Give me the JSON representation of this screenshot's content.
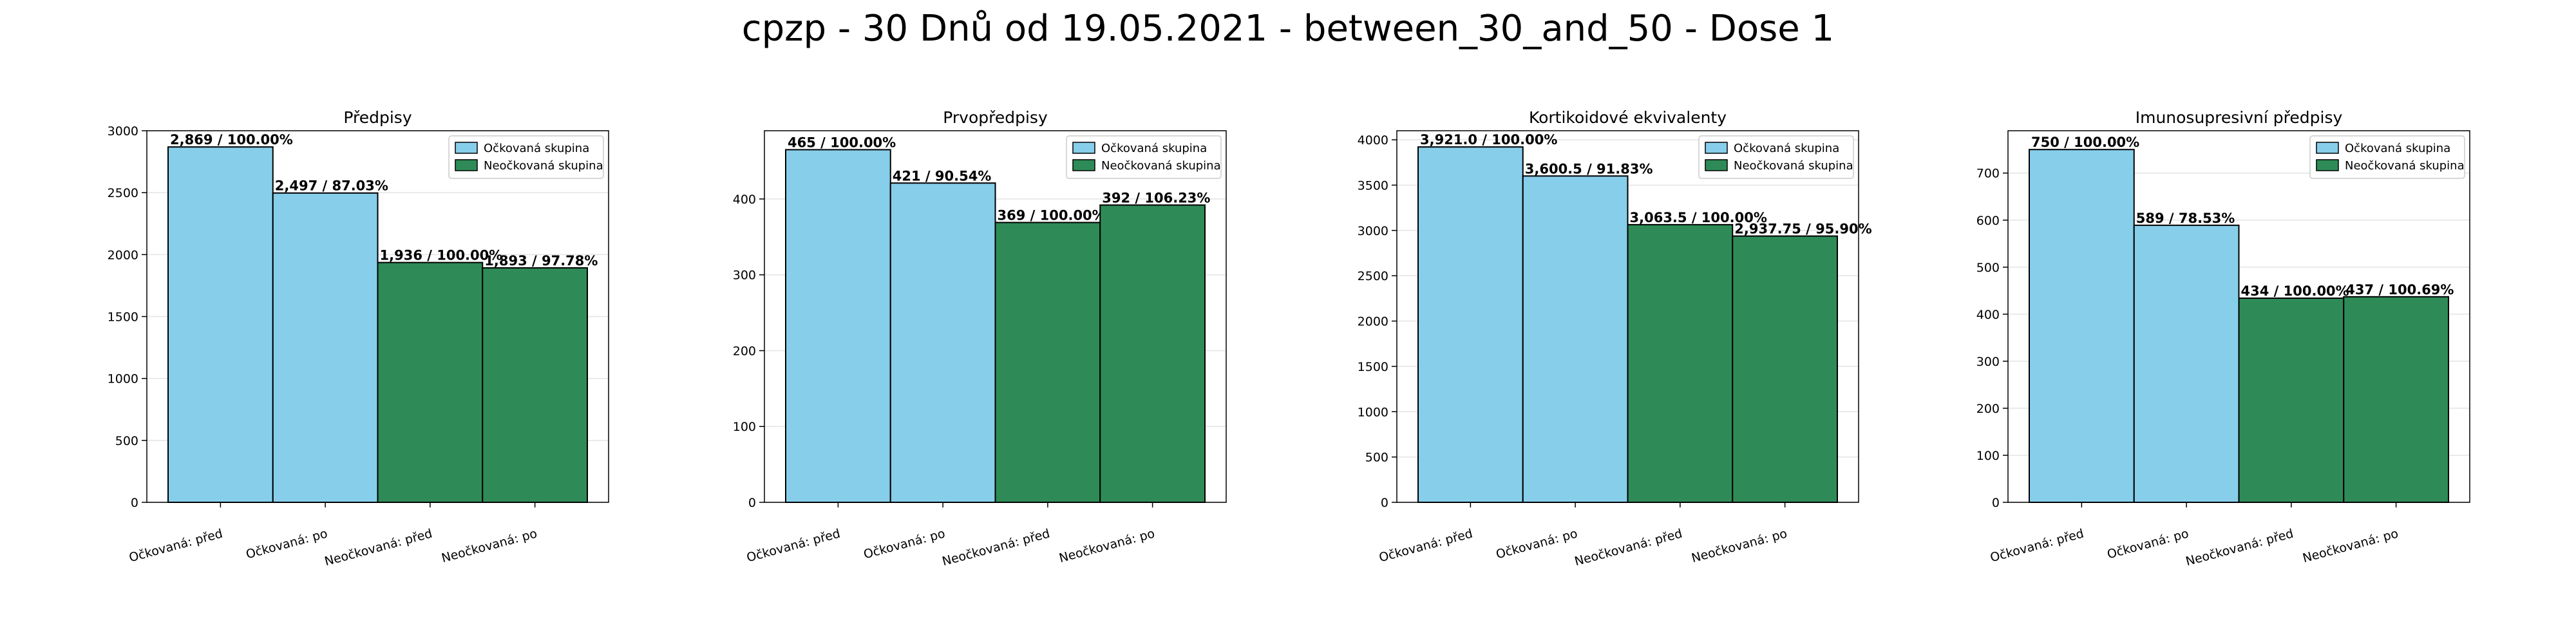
{
  "figure_title": "cpzp - 30 Dnů od 19.05.2021 - between_30_and_50 - Dose 1",
  "colors": {
    "vaccinated": "#87ceeb",
    "unvaccinated": "#2e8b57"
  },
  "chart_data": [
    {
      "type": "bar",
      "title": "Předpisy",
      "categories": [
        "Očkovaná: před",
        "Očkovaná: po",
        "Neočkovaná: před",
        "Neočkovaná: po"
      ],
      "values": [
        2869,
        2497,
        1936,
        1893
      ],
      "labels": [
        "2,869 / 100.00%",
        "2,497 / 87.03%",
        "1,936 / 100.00%",
        "1,893 / 97.78%"
      ],
      "groups": [
        "vaccinated",
        "vaccinated",
        "unvaccinated",
        "unvaccinated"
      ],
      "ylim": [
        0,
        3000
      ],
      "yticks": [
        0,
        500,
        1000,
        1500,
        2000,
        2500,
        3000
      ],
      "legend": [
        "Očkovaná skupina",
        "Neočkovaná skupina"
      ],
      "legend_position": "top-right",
      "grid": true
    },
    {
      "type": "bar",
      "title": "Prvopředpisy",
      "categories": [
        "Očkovaná: před",
        "Očkovaná: po",
        "Neočkovaná: před",
        "Neočkovaná: po"
      ],
      "values": [
        465,
        421,
        369,
        392
      ],
      "labels": [
        "465 / 100.00%",
        "421 / 90.54%",
        "369 / 100.00%",
        "392 / 106.23%"
      ],
      "groups": [
        "vaccinated",
        "vaccinated",
        "unvaccinated",
        "unvaccinated"
      ],
      "ylim": [
        0,
        490
      ],
      "yticks": [
        0,
        100,
        200,
        300,
        400
      ],
      "legend": [
        "Očkovaná skupina",
        "Neočkovaná skupina"
      ],
      "legend_position": "top-right",
      "grid": true
    },
    {
      "type": "bar",
      "title": "Kortikoidové ekvivalenty",
      "categories": [
        "Očkovaná: před",
        "Očkovaná: po",
        "Neočkovaná: před",
        "Neočkovaná: po"
      ],
      "values": [
        3921.0,
        3600.5,
        3063.5,
        2937.75
      ],
      "labels": [
        "3,921.0 / 100.00%",
        "3,600.5 / 91.83%",
        "3,063.5 / 100.00%",
        "2,937.75 / 95.90%"
      ],
      "groups": [
        "vaccinated",
        "vaccinated",
        "unvaccinated",
        "unvaccinated"
      ],
      "ylim": [
        0,
        4100
      ],
      "yticks": [
        0,
        500,
        1000,
        1500,
        2000,
        2500,
        3000,
        3500,
        4000
      ],
      "legend": [
        "Očkovaná skupina",
        "Neočkovaná skupina"
      ],
      "legend_position": "top-right",
      "grid": true
    },
    {
      "type": "bar",
      "title": "Imunosupresivní předpisy",
      "categories": [
        "Očkovaná: před",
        "Očkovaná: po",
        "Neočkovaná: před",
        "Neočkovaná: po"
      ],
      "values": [
        750,
        589,
        434,
        437
      ],
      "labels": [
        "750 / 100.00%",
        "589 / 78.53%",
        "434 / 100.00%",
        "437 / 100.69%"
      ],
      "groups": [
        "vaccinated",
        "vaccinated",
        "unvaccinated",
        "unvaccinated"
      ],
      "ylim": [
        0,
        790
      ],
      "yticks": [
        0,
        100,
        200,
        300,
        400,
        500,
        600,
        700
      ],
      "legend": [
        "Očkovaná skupina",
        "Neočkovaná skupina"
      ],
      "legend_position": "top-right",
      "grid": true
    }
  ]
}
